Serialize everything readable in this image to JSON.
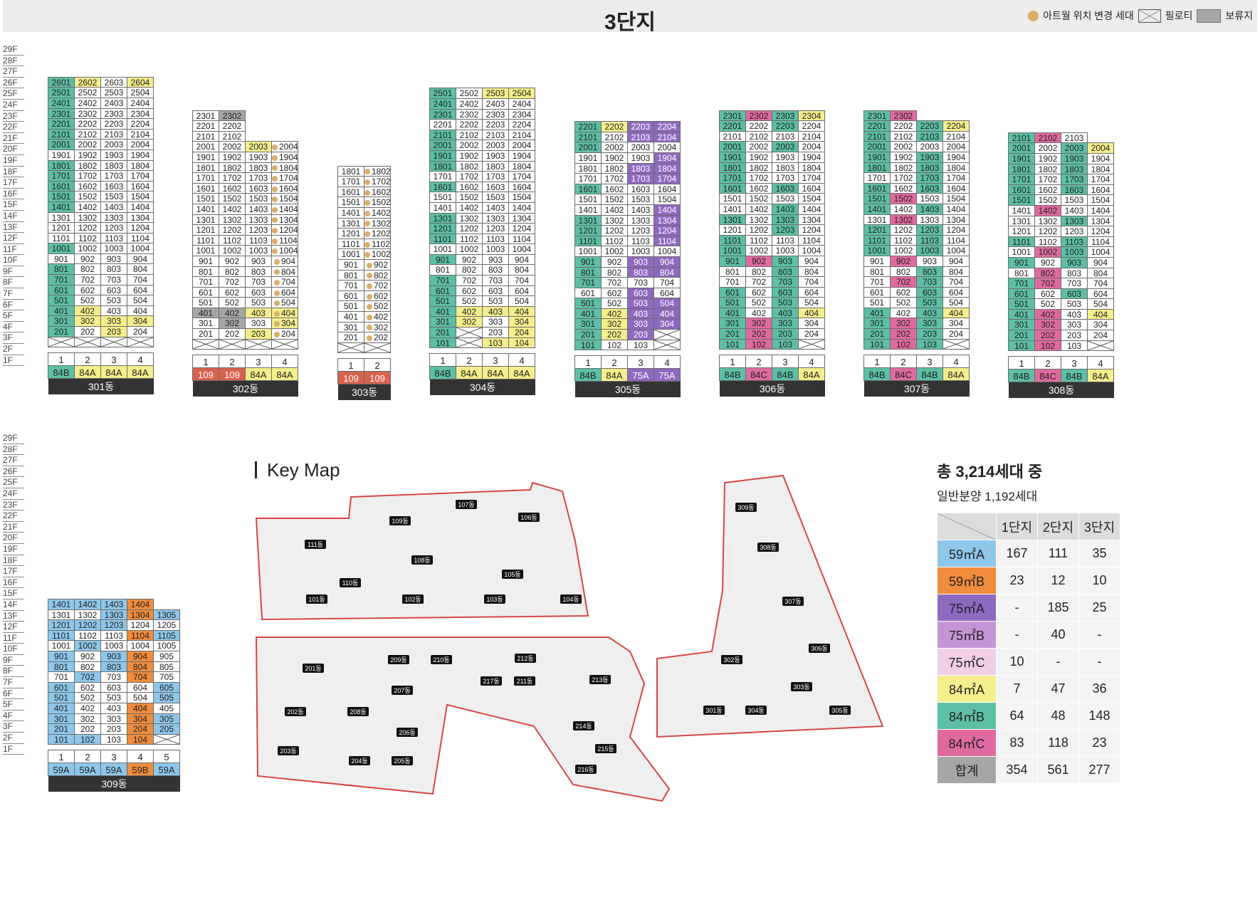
{
  "title": "3단지",
  "legend": [
    {
      "icon": "dot-icon",
      "label": "아트월 위치 변경 세대"
    },
    {
      "icon": "pilotis-icon",
      "label": "필로티"
    },
    {
      "icon": "reserved-box-icon",
      "label": "보류지"
    }
  ],
  "colors": {
    "w": "#ffffff",
    "t": "#5dbfa5",
    "y": "#f5ee8c",
    "p": "#8f68c0",
    "m": "#e06aa0",
    "b": "#8ec7ea",
    "o": "#f08c3c",
    "g": "#a6a6a6",
    "r": "#d9624f"
  },
  "floors": [
    "29F",
    "28F",
    "27F",
    "26F",
    "25F",
    "24F",
    "23F",
    "22F",
    "21F",
    "20F",
    "19F",
    "18F",
    "17F",
    "16F",
    "15F",
    "14F",
    "13F",
    "12F",
    "11F",
    "10F",
    "9F",
    "8F",
    "7F",
    "6F",
    "5F",
    "4F",
    "3F",
    "2F",
    "1F"
  ],
  "buildings": [
    {
      "name": "301동",
      "lines": [
        "1",
        "2",
        "3",
        "4"
      ],
      "types": [
        [
          "84B",
          "t"
        ],
        [
          "84A",
          "y"
        ],
        [
          "84A",
          "y"
        ],
        [
          "84A",
          "y"
        ]
      ],
      "rows": [
        "2601:t 2602:y 2603 2604:y",
        "2501:t 2502 2503 2504",
        "2401:t 2402 2403 2404",
        "2301:t 2302 2303 2304",
        "2201:t 2202 2203 2204",
        "2101:t 2102 2103 2104",
        "2001:t 2002 2003 2004",
        "1901 1902 1903 1904",
        "1801:t 1802 1803 1804",
        "1701:t 1702 1703 1704",
        "1601:t 1602 1603 1604",
        "1501:t 1502 1503 1504",
        "1401:t 1402 1403 1404",
        "1301 1302 1303 1304",
        "1201 1202 1203 1204",
        "1101 1102 1103 1104",
        "1001:t 1002 1003 1004",
        "901 902 903 904",
        "801:t 802 803 804",
        "701:t 702 703 704",
        "601:t 602 603 604",
        "501:t 502 503 504",
        "401:t 402:y 403 404",
        "301:t 302:y 303:y 304:y",
        "201:t 202 203:y 204",
        "X X X X"
      ]
    },
    {
      "name": "302동",
      "lines": [
        "1",
        "2",
        "3",
        "4"
      ],
      "types": [
        [
          "109",
          "r"
        ],
        [
          "109",
          "r"
        ],
        [
          "84A",
          "y"
        ],
        [
          "84A",
          "y"
        ]
      ],
      "rows": [
        "2301 2302:g",
        "2201 2202",
        "2101 2102",
        "2001 2002 2003:y 2004:d",
        "1901 1902 1903 1904:d",
        "1801 1802 1803 1804:d",
        "1701 1702 1703 1704:d",
        "1601 1602 1603 1604:d",
        "1501 1502 1503 1504:d",
        "1401 1402 1403 1404:d",
        "1301 1302 1303 1304:d",
        "1201 1202 1203 1204:d",
        "1101 1102 1103 1104:d",
        "1001 1002 1003 1004:d",
        "901 902 903 904:d",
        "801 802 803 804:d",
        "701 702 703 704:d",
        "601 602 603 604:d",
        "501 502 503 504:d",
        "401:g 402:g 403:y 404:yd",
        "301 302:g 303 304:yd",
        "201 202 203:y 204:d",
        "X X X X"
      ]
    },
    {
      "name": "303동",
      "lines": [
        "1",
        "2"
      ],
      "types": [
        [
          "109",
          "r"
        ],
        [
          "109",
          "r"
        ]
      ],
      "rows": [
        "1801 1802:d",
        "1701 1702:d",
        "1601 1602:d",
        "1501 1502:d",
        "1401 1402:d",
        "1301 1302:d",
        "1201 1202:d",
        "1101 1102:d",
        "1001 1002:d",
        "901 902:d",
        "801 802:d",
        "701 702:d",
        "601 602:d",
        "501 502:d",
        "401 402:d",
        "301 302:d",
        "201 202:d",
        "X X"
      ]
    },
    {
      "name": "304동",
      "lines": [
        "1",
        "2",
        "3",
        "4"
      ],
      "types": [
        [
          "84B",
          "t"
        ],
        [
          "84A",
          "y"
        ],
        [
          "84A",
          "y"
        ],
        [
          "84A",
          "y"
        ]
      ],
      "rows": [
        "2501:t 2502 2503:y 2504:y",
        "2401:t 2402 2403 2404",
        "2301:t 2302 2303 2304",
        "2201 2202 2203 2204",
        "2101:t 2102 2103 2104",
        "2001:t 2002 2003 2004",
        "1901:t 1902 1903 1904",
        "1801:t 1802 1803 1804",
        "1701 1702 1703 1704",
        "1601:t 1602 1603 1604",
        "1501 1502 1503 1504",
        "1401 1402 1403 1404",
        "1301:t 1302 1303 1304",
        "1201:t 1202 1203 1204",
        "1101:t 1102 1103 1104",
        "1001 1002 1003 1004",
        "901:t 902 903 904",
        "801 802 803 804",
        "701:t 702 703 704",
        "601:t 602 603 604",
        "501:t 502 503 504",
        "401:t 402:y 403:y 404:y",
        "301:t 302:y 303 304:y",
        "201:t X 203 204:y",
        "101:t X 103:y 104:y"
      ]
    },
    {
      "name": "305동",
      "lines": [
        "1",
        "2",
        "3",
        "4"
      ],
      "types": [
        [
          "84B",
          "t"
        ],
        [
          "84A",
          "y"
        ],
        [
          "75A",
          "p"
        ],
        [
          "75A",
          "p"
        ]
      ],
      "rows": [
        "2201:t 2202:y 2203:p 2204:p",
        "2101:t 2102 2103:p 2104:p",
        "2001:t 2002 2003 2004",
        "1901 1902 1903 1904:p",
        "1801 1802 1803:p 1804:p",
        "1701 1702 1703:p 1704:p",
        "1601:t 1602 1603 1604",
        "1501 1502 1503 1504",
        "1401 1402 1403 1404:p",
        "1301:t 1302 1303 1304:p",
        "1201:t 1202 1203 1204:p",
        "1101:t 1102 1103 1104:p",
        "1001 1002 1003 1004",
        "901:t 902 903:p 904:p",
        "801:t 802 803:p 804:p",
        "701:t 702 703 704",
        "601 602 603:p 604",
        "501:t 502 503:p 504:p",
        "401:t 402:y 403:p 404:p",
        "301:t 302:y 303:p 304:p",
        "201:t 202:y 203:p X",
        "101:t 102 103 X"
      ]
    },
    {
      "name": "306동",
      "lines": [
        "1",
        "2",
        "3",
        "4"
      ],
      "types": [
        [
          "84B",
          "t"
        ],
        [
          "84C",
          "m"
        ],
        [
          "84B",
          "t"
        ],
        [
          "84A",
          "y"
        ]
      ],
      "rows": [
        "2301:t 2302:m 2303:t 2304:y",
        "2201:t 2202 2203:t 2204",
        "2101 2102 2103 2104",
        "2001:t 2002 2003:t 2004",
        "1901:t 1902 1903 1904",
        "1801:t 1802 1803 1804",
        "1701:t 1702 1703 1704",
        "1601:t 1602 1603:t 1604",
        "1501 1502 1503 1504",
        "1401 1402 1403:t 1404",
        "1301:t 1302 1303:t 1304",
        "1201 1202 1203:t 1204",
        "1101:t 1102 1103 1104",
        "1001:t 1002 1003 1004",
        "901:t 902:m 903:t 904",
        "801 802 803:t 804",
        "701 702 703:t 704",
        "601:t 602 603:t 604",
        "501:t 502 503:t 504",
        "401:t 402 403:t 404:y",
        "301:t 302:m 303:t 304",
        "201:t 202:m 203:t 204",
        "101:t 102:m 103:t X"
      ]
    },
    {
      "name": "307동",
      "lines": [
        "1",
        "2",
        "3",
        "4"
      ],
      "types": [
        [
          "84B",
          "t"
        ],
        [
          "84C",
          "m"
        ],
        [
          "84B",
          "t"
        ],
        [
          "84A",
          "y"
        ]
      ],
      "rows": [
        "2301:t 2302:m",
        "2201:t 2202 2203:t 2204:y",
        "2101:t 2102 2103:t 2104",
        "2001:t 2002 2003 2004",
        "1901:t 1902 1903:t 1904",
        "1801:t 1802 1803:t 1804",
        "1701 1702 1703:t 1704",
        "1601:t 1602 1603:t 1604",
        "1501:t 1502:m 1503 1504",
        "1401:t 1402 1403:t 1404",
        "1301 1302:m 1303 1304",
        "1201:t 1202 1203:t 1204",
        "1101:t 1102 1103:t 1104",
        "1001:t 1002 1003:t 1004",
        "901 902:m 903 904",
        "801 802 803:t 804",
        "701 702:m 703:t 704",
        "601 602 603:t 604",
        "501 502 503:t 504",
        "401:t 402 403:t 404:y",
        "301:t 302:m 303:t 304",
        "201:t 202:m 203:t 204",
        "101:t 102:m 103:t X"
      ]
    },
    {
      "name": "308동",
      "lines": [
        "1",
        "2",
        "3",
        "4"
      ],
      "types": [
        [
          "84B",
          "t"
        ],
        [
          "84C",
          "m"
        ],
        [
          "84B",
          "t"
        ],
        [
          "84A",
          "y"
        ]
      ],
      "rows": [
        "2101:t 2102:m 2103",
        "2001:t 2002 2003:t 2004:y",
        "1901:t 1902 1903:t 1904",
        "1801:t 1802 1803:t 1804",
        "1701:t 1702 1703:t 1704",
        "1601:t 1602 1603:t 1604",
        "1501:t 1502 1503 1504",
        "1401 1402:m 1403 1404",
        "1301 1302 1303:t 1304",
        "1201 1202 1203 1204",
        "1101:t 1102 1103:t 1104",
        "1001 1002:m 1003:t 1004",
        "901:t 902 903:t 904",
        "801 802:m 803 804",
        "701:t 702:m 703 704",
        "601:t 602 603:t 604",
        "501:t 502 503 504",
        "401:t 402:m 403 404:y",
        "301:t 302:m 303 304",
        "201:t 202:m 203 204",
        "101:t 102:m 103 X"
      ]
    },
    {
      "name": "309동",
      "lines": [
        "1",
        "2",
        "3",
        "4",
        "5"
      ],
      "types": [
        [
          "59A",
          "b"
        ],
        [
          "59A",
          "b"
        ],
        [
          "59A",
          "b"
        ],
        [
          "59B",
          "o"
        ],
        [
          "59A",
          "b"
        ]
      ],
      "rows": [
        "1401:b 1402:b 1403:b 1404:o",
        "1301 1302 1303:b 1304:o 1305:b",
        "1201:b 1202:b 1203:b 1204 1205",
        "1101:b 1102 1103 1104:o 1105:b",
        "1001 1002:b 1003 1004 1005",
        "901:b 902 903:b 904:o 905",
        "801:b 802 803:b 804:o 805",
        "701 702:b 703 704:o 705",
        "601:b 602 603 604 605:b",
        "501:b 502 503 504 505:b",
        "401:b 402 403 404:o 405",
        "301:b 302 303 304:o 305:b",
        "201:b 202 203 204:o 205:b",
        "101:b 102:b 103 104:o X"
      ]
    }
  ],
  "keymap": {
    "title": "Key Map",
    "labels": [
      "107동",
      "109동",
      "106동",
      "111동",
      "108동",
      "105동",
      "110동",
      "101동",
      "102동",
      "103동",
      "104동",
      "209동",
      "210동",
      "212동",
      "201동",
      "217동",
      "211동",
      "213동",
      "207동",
      "202동",
      "208동",
      "214동",
      "206동",
      "215동",
      "203동",
      "204동",
      "205동",
      "216동",
      "309동",
      "308동",
      "307동",
      "306동",
      "302동",
      "303동",
      "301동",
      "304동",
      "305동"
    ]
  },
  "totals": {
    "headline": "총 3,214세대 중",
    "sub": "일반분양 1,192세대",
    "columns": [
      "1단지",
      "2단지",
      "3단지"
    ],
    "rows": [
      {
        "type": "59㎡A",
        "color": "#8ec7ea",
        "values": [
          "167",
          "111",
          "35"
        ]
      },
      {
        "type": "59㎡B",
        "color": "#f08c3c",
        "values": [
          "23",
          "12",
          "10"
        ]
      },
      {
        "type": "75㎡A",
        "color": "#8f68c0",
        "values": [
          "-",
          "185",
          "25"
        ]
      },
      {
        "type": "75㎡B",
        "color": "#c495d6",
        "values": [
          "-",
          "40",
          "-"
        ]
      },
      {
        "type": "75㎡C",
        "color": "#f0cfe6",
        "values": [
          "10",
          "-",
          "-"
        ]
      },
      {
        "type": "84㎡A",
        "color": "#f5ee8c",
        "values": [
          "7",
          "47",
          "36"
        ]
      },
      {
        "type": "84㎡B",
        "color": "#5dbfa5",
        "values": [
          "64",
          "48",
          "148"
        ]
      },
      {
        "type": "84㎡C",
        "color": "#e06aa0",
        "values": [
          "83",
          "118",
          "23"
        ]
      },
      {
        "type": "합계",
        "color": "#a6a6a6",
        "values": [
          "354",
          "561",
          "277"
        ]
      }
    ]
  }
}
